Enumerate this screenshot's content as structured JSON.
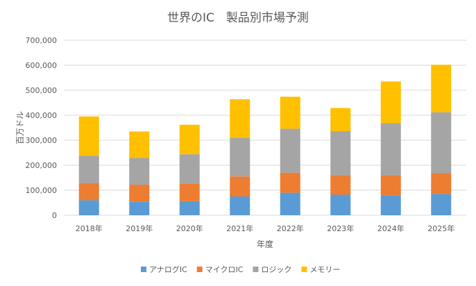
{
  "chart_data": {
    "type": "bar",
    "stacked": true,
    "title": "世界のIC　製品別市場予測",
    "xlabel": "年度",
    "ylabel": "百万ドル",
    "ylim": [
      0,
      700000
    ],
    "yticks": [
      0,
      100000,
      200000,
      300000,
      400000,
      500000,
      600000,
      700000
    ],
    "ytick_labels": [
      "0",
      "100,000",
      "200,000",
      "300,000",
      "400,000",
      "500,000",
      "600,000",
      "700,000"
    ],
    "grid": true,
    "legend_position": "bottom",
    "categories": [
      "2018年",
      "2019年",
      "2020年",
      "2021年",
      "2022年",
      "2023年",
      "2024年",
      "2025年"
    ],
    "series": [
      {
        "name": "アナログIC",
        "color": "#5b9bd5",
        "values": [
          60000,
          55000,
          56000,
          75000,
          90000,
          82000,
          80000,
          85000
        ]
      },
      {
        "name": "マイクロIC",
        "color": "#ed7d31",
        "values": [
          68000,
          67000,
          71000,
          80000,
          80000,
          78000,
          80000,
          83000
        ]
      },
      {
        "name": "ロジック",
        "color": "#a5a5a5",
        "values": [
          110000,
          107000,
          117000,
          155000,
          176000,
          176000,
          208000,
          244000
        ]
      },
      {
        "name": "メモリー",
        "color": "#ffc000",
        "values": [
          157000,
          106000,
          118000,
          154000,
          128000,
          93000,
          167000,
          190000
        ]
      }
    ]
  }
}
